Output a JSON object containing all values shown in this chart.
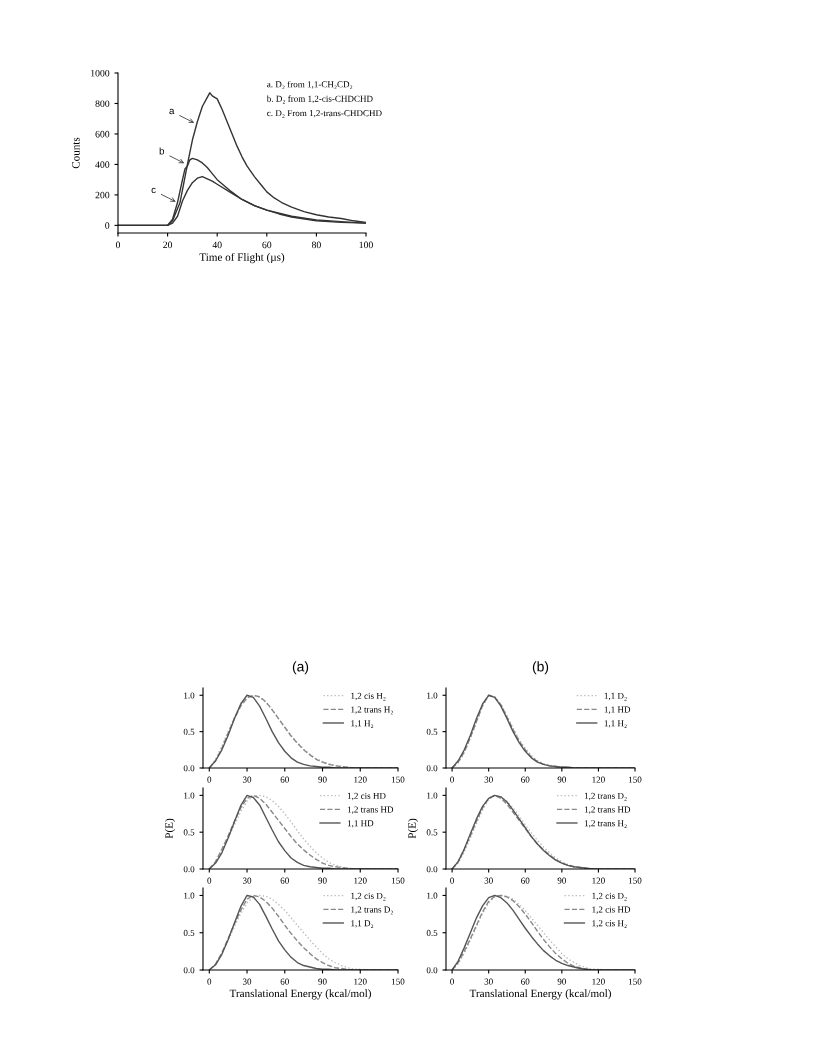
{
  "chart_data": [
    {
      "type": "line",
      "xlabel": "Time of Flight (µs)",
      "ylabel": "Counts",
      "xlim": [
        0,
        100
      ],
      "ylim": [
        -50,
        1000
      ],
      "xticks": [
        0,
        20,
        40,
        60,
        80,
        100
      ],
      "yticks": [
        0,
        200,
        400,
        600,
        800,
        1000
      ],
      "annotations": [
        "a. D₂ from 1,1-CH₂CD₂",
        "b. D₂ from 1,2-cis-CHDCHD",
        "c. D₂ From 1,2-trans-CHDCHD",
        {
          "text": "a",
          "x": 31.7,
          "y": 665
        },
        {
          "text": "b",
          "x": 27.7,
          "y": 400
        },
        {
          "text": "c",
          "x": 24.3,
          "y": 147
        }
      ],
      "series": [
        {
          "color": "#333333",
          "line_style": "solid",
          "x": [
            0,
            10,
            20,
            22,
            25,
            28,
            30,
            32,
            34,
            36,
            37,
            38,
            40,
            42,
            44,
            46,
            48,
            50,
            52,
            55,
            58,
            60,
            63,
            66,
            70,
            75,
            80,
            85,
            90,
            95,
            100
          ],
          "values": [
            0,
            0,
            0,
            30,
            150,
            400,
            560,
            680,
            780,
            840,
            870,
            850,
            830,
            760,
            680,
            600,
            520,
            450,
            390,
            320,
            260,
            220,
            180,
            150,
            120,
            90,
            70,
            55,
            45,
            30,
            20
          ]
        },
        {
          "color": "#333333",
          "line_style": "solid",
          "x": [
            0,
            10,
            20,
            22,
            24,
            26,
            27,
            28,
            29,
            30,
            32,
            34,
            36,
            38,
            40,
            45,
            50,
            55,
            60,
            65,
            70,
            80,
            90,
            100
          ],
          "values": [
            0,
            0,
            0,
            40,
            150,
            300,
            370,
            390,
            430,
            440,
            430,
            410,
            380,
            340,
            300,
            230,
            170,
            130,
            100,
            75,
            55,
            30,
            20,
            15
          ]
        },
        {
          "color": "#333333",
          "line_style": "solid",
          "x": [
            0,
            10,
            20,
            22,
            24,
            26,
            28,
            30,
            32,
            34,
            36,
            38,
            40,
            45,
            50,
            55,
            60,
            70,
            80,
            90,
            100
          ],
          "values": [
            0,
            0,
            0,
            15,
            60,
            160,
            230,
            280,
            310,
            320,
            305,
            290,
            270,
            220,
            170,
            130,
            100,
            60,
            35,
            25,
            15
          ]
        }
      ]
    },
    {
      "type": "line",
      "title": "(a)",
      "legend": "top right",
      "x": [
        0,
        5,
        10,
        15,
        20,
        25,
        30,
        35,
        40,
        45,
        50,
        55,
        60,
        65,
        70,
        75,
        80,
        85,
        90,
        95,
        100,
        105,
        110,
        115,
        120,
        125,
        130,
        135,
        140,
        145,
        150
      ],
      "xlim": [
        -5,
        150
      ],
      "ylim": [
        0,
        1.1
      ],
      "xticks": [
        0,
        30,
        60,
        90,
        120,
        150
      ],
      "yticks": [
        {
          "value": 0,
          "label": "0.0"
        },
        {
          "value": 0.5,
          "label": "0.5"
        },
        {
          "value": 1,
          "label": "1.0"
        }
      ],
      "series": [
        {
          "name": "1,2 cis H₂",
          "color": "#bbbbbb",
          "line_style": "dotted",
          "values": [
            0,
            0.12,
            0.3,
            0.5,
            0.7,
            0.86,
            0.97,
            1.0,
            0.97,
            0.9,
            0.8,
            0.68,
            0.56,
            0.45,
            0.35,
            0.26,
            0.19,
            0.13,
            0.09,
            0.06,
            0.04,
            0.02,
            0.01,
            0,
            0,
            0,
            0,
            0,
            0,
            0,
            0
          ]
        },
        {
          "name": "1,2 trans H₂",
          "color": "#888888",
          "line_style": "dashed",
          "values": [
            0,
            0.1,
            0.27,
            0.48,
            0.68,
            0.85,
            0.96,
            1.0,
            0.98,
            0.91,
            0.8,
            0.68,
            0.56,
            0.44,
            0.34,
            0.25,
            0.18,
            0.12,
            0.08,
            0.05,
            0.03,
            0.02,
            0.01,
            0,
            0,
            0,
            0,
            0,
            0,
            0,
            0
          ]
        },
        {
          "name": "1,1 H₂",
          "color": "#555555",
          "line_style": "solid",
          "values": [
            0,
            0.1,
            0.25,
            0.45,
            0.68,
            0.88,
            1.0,
            0.97,
            0.85,
            0.68,
            0.5,
            0.35,
            0.23,
            0.14,
            0.08,
            0.05,
            0.03,
            0.02,
            0.01,
            0.01,
            0,
            0,
            0,
            0,
            0,
            0,
            0,
            0,
            0,
            0,
            0
          ]
        }
      ]
    },
    {
      "type": "line",
      "title": "(b)",
      "legend": "top right",
      "x": [
        0,
        5,
        10,
        15,
        20,
        25,
        30,
        35,
        40,
        45,
        50,
        55,
        60,
        65,
        70,
        75,
        80,
        85,
        90,
        95,
        100,
        105,
        110,
        115,
        120,
        125,
        130,
        135,
        140,
        145,
        150
      ],
      "xlim": [
        -5,
        150
      ],
      "ylim": [
        0,
        1.1
      ],
      "xticks": [
        0,
        30,
        60,
        90,
        120,
        150
      ],
      "yticks": [
        {
          "value": 0,
          "label": "0.0"
        },
        {
          "value": 0.5,
          "label": "0.5"
        },
        {
          "value": 1,
          "label": "1.0"
        }
      ],
      "series": [
        {
          "name": "1,1 D₂",
          "color": "#bbbbbb",
          "line_style": "dotted",
          "values": [
            0,
            0.07,
            0.21,
            0.41,
            0.63,
            0.85,
            1.0,
            0.98,
            0.88,
            0.72,
            0.55,
            0.39,
            0.27,
            0.17,
            0.1,
            0.06,
            0.04,
            0.02,
            0.01,
            0.01,
            0,
            0,
            0,
            0,
            0,
            0,
            0,
            0,
            0,
            0,
            0
          ]
        },
        {
          "name": "1,1 HD",
          "color": "#888888",
          "line_style": "dashed",
          "values": [
            0,
            0.08,
            0.22,
            0.42,
            0.64,
            0.86,
            1.0,
            0.97,
            0.87,
            0.7,
            0.53,
            0.37,
            0.25,
            0.15,
            0.09,
            0.05,
            0.03,
            0.02,
            0.01,
            0.01,
            0,
            0,
            0,
            0,
            0,
            0,
            0,
            0,
            0,
            0,
            0
          ]
        },
        {
          "name": "1,1 H₂",
          "color": "#555555",
          "line_style": "solid",
          "values": [
            0,
            0.1,
            0.25,
            0.45,
            0.68,
            0.88,
            1.0,
            0.97,
            0.85,
            0.68,
            0.5,
            0.35,
            0.23,
            0.14,
            0.08,
            0.05,
            0.03,
            0.02,
            0.01,
            0.01,
            0,
            0,
            0,
            0,
            0,
            0,
            0,
            0,
            0,
            0,
            0
          ]
        }
      ]
    },
    {
      "type": "line",
      "ylabel": "P(E)",
      "legend": "top right",
      "x": [
        0,
        5,
        10,
        15,
        20,
        25,
        30,
        35,
        40,
        45,
        50,
        55,
        60,
        65,
        70,
        75,
        80,
        85,
        90,
        95,
        100,
        105,
        110,
        115,
        120,
        125,
        130,
        135,
        140,
        145,
        150
      ],
      "xlim": [
        -5,
        150
      ],
      "ylim": [
        0,
        1.1
      ],
      "xticks": [
        0,
        30,
        60,
        90,
        120,
        150
      ],
      "yticks": [
        {
          "value": 0,
          "label": "0.0"
        },
        {
          "value": 0.5,
          "label": "0.5"
        },
        {
          "value": 1,
          "label": "1.0"
        }
      ],
      "series": [
        {
          "name": "1,2 cis HD",
          "color": "#bbbbbb",
          "line_style": "dotted",
          "values": [
            0,
            0.1,
            0.25,
            0.42,
            0.6,
            0.78,
            0.92,
            0.99,
            1.0,
            0.98,
            0.93,
            0.85,
            0.75,
            0.64,
            0.52,
            0.41,
            0.31,
            0.22,
            0.15,
            0.09,
            0.05,
            0.03,
            0.01,
            0,
            0,
            0,
            0,
            0,
            0,
            0,
            0
          ]
        },
        {
          "name": "1,2 trans HD",
          "color": "#888888",
          "line_style": "dashed",
          "values": [
            0,
            0.1,
            0.27,
            0.45,
            0.65,
            0.83,
            0.96,
            1.0,
            0.96,
            0.88,
            0.77,
            0.66,
            0.55,
            0.44,
            0.34,
            0.26,
            0.19,
            0.13,
            0.08,
            0.05,
            0.03,
            0.02,
            0.01,
            0,
            0,
            0,
            0,
            0,
            0,
            0,
            0
          ]
        },
        {
          "name": "1,1 HD",
          "color": "#555555",
          "line_style": "solid",
          "values": [
            0,
            0.08,
            0.22,
            0.42,
            0.64,
            0.86,
            1.0,
            0.97,
            0.87,
            0.7,
            0.53,
            0.37,
            0.25,
            0.15,
            0.09,
            0.05,
            0.03,
            0.02,
            0.01,
            0.01,
            0,
            0,
            0,
            0,
            0,
            0,
            0,
            0,
            0,
            0,
            0
          ]
        }
      ]
    },
    {
      "type": "line",
      "ylabel": "P(E)",
      "legend": "top right",
      "x": [
        0,
        5,
        10,
        15,
        20,
        25,
        30,
        35,
        40,
        45,
        50,
        55,
        60,
        65,
        70,
        75,
        80,
        85,
        90,
        95,
        100,
        105,
        110,
        115,
        120,
        125,
        130,
        135,
        140,
        145,
        150
      ],
      "xlim": [
        -5,
        150
      ],
      "ylim": [
        0,
        1.1
      ],
      "xticks": [
        0,
        30,
        60,
        90,
        120,
        150
      ],
      "yticks": [
        {
          "value": 0,
          "label": "0.0"
        },
        {
          "value": 0.5,
          "label": "0.5"
        },
        {
          "value": 1,
          "label": "1.0"
        }
      ],
      "series": [
        {
          "name": "1,2 trans D₂",
          "color": "#bbbbbb",
          "line_style": "dotted",
          "values": [
            0,
            0.08,
            0.23,
            0.42,
            0.62,
            0.8,
            0.95,
            1.0,
            0.98,
            0.92,
            0.83,
            0.72,
            0.6,
            0.49,
            0.39,
            0.3,
            0.22,
            0.15,
            0.1,
            0.06,
            0.03,
            0.02,
            0.01,
            0,
            0,
            0,
            0,
            0,
            0,
            0,
            0
          ]
        },
        {
          "name": "1,2 trans HD",
          "color": "#888888",
          "line_style": "dashed",
          "values": [
            0,
            0.1,
            0.27,
            0.45,
            0.65,
            0.83,
            0.96,
            1.0,
            0.96,
            0.88,
            0.77,
            0.66,
            0.55,
            0.44,
            0.34,
            0.26,
            0.19,
            0.13,
            0.08,
            0.05,
            0.03,
            0.02,
            0.01,
            0,
            0,
            0,
            0,
            0,
            0,
            0,
            0
          ]
        },
        {
          "name": "1,2 trans H₂",
          "color": "#555555",
          "line_style": "solid",
          "values": [
            0,
            0.1,
            0.27,
            0.48,
            0.68,
            0.85,
            0.96,
            1.0,
            0.98,
            0.91,
            0.8,
            0.68,
            0.56,
            0.44,
            0.34,
            0.25,
            0.18,
            0.12,
            0.08,
            0.05,
            0.03,
            0.02,
            0.01,
            0,
            0,
            0,
            0,
            0,
            0,
            0,
            0
          ]
        }
      ]
    },
    {
      "type": "line",
      "xlabel": "Translational Energy (kcal/mol)",
      "legend": "top right",
      "x": [
        0,
        5,
        10,
        15,
        20,
        25,
        30,
        35,
        40,
        45,
        50,
        55,
        60,
        65,
        70,
        75,
        80,
        85,
        90,
        95,
        100,
        105,
        110,
        115,
        120,
        125,
        130,
        135,
        140,
        145,
        150
      ],
      "xlim": [
        -5,
        150
      ],
      "ylim": [
        0,
        1.1
      ],
      "xticks": [
        0,
        30,
        60,
        90,
        120,
        150
      ],
      "yticks": [
        {
          "value": 0,
          "label": "0.0"
        },
        {
          "value": 0.5,
          "label": "0.5"
        },
        {
          "value": 1,
          "label": "1.0"
        }
      ],
      "series": [
        {
          "name": "1,2 cis D₂",
          "color": "#bbbbbb",
          "line_style": "dotted",
          "values": [
            0,
            0.08,
            0.22,
            0.4,
            0.58,
            0.76,
            0.9,
            0.98,
            1.0,
            0.99,
            0.95,
            0.88,
            0.8,
            0.7,
            0.6,
            0.5,
            0.4,
            0.31,
            0.22,
            0.15,
            0.1,
            0.06,
            0.03,
            0.01,
            0.01,
            0,
            0,
            0,
            0,
            0,
            0
          ]
        },
        {
          "name": "1,2 trans D₂",
          "color": "#888888",
          "line_style": "dashed",
          "values": [
            0,
            0.08,
            0.23,
            0.42,
            0.62,
            0.8,
            0.95,
            1.0,
            0.98,
            0.92,
            0.83,
            0.72,
            0.6,
            0.49,
            0.39,
            0.3,
            0.22,
            0.15,
            0.1,
            0.06,
            0.03,
            0.02,
            0.01,
            0,
            0,
            0,
            0,
            0,
            0,
            0,
            0
          ]
        },
        {
          "name": "1,1 D₂",
          "color": "#555555",
          "line_style": "solid",
          "values": [
            0,
            0.07,
            0.21,
            0.41,
            0.63,
            0.85,
            1.0,
            0.98,
            0.88,
            0.72,
            0.55,
            0.39,
            0.27,
            0.17,
            0.1,
            0.06,
            0.04,
            0.02,
            0.01,
            0.01,
            0,
            0,
            0,
            0,
            0,
            0,
            0,
            0,
            0,
            0,
            0
          ]
        }
      ]
    },
    {
      "type": "line",
      "xlabel": "Translational Energy (kcal/mol)",
      "legend": "top right",
      "x": [
        0,
        5,
        10,
        15,
        20,
        25,
        30,
        35,
        40,
        45,
        50,
        55,
        60,
        65,
        70,
        75,
        80,
        85,
        90,
        95,
        100,
        105,
        110,
        115,
        120,
        125,
        130,
        135,
        140,
        145,
        150
      ],
      "xlim": [
        -5,
        150
      ],
      "ylim": [
        0,
        1.1
      ],
      "xticks": [
        0,
        30,
        60,
        90,
        120,
        150
      ],
      "yticks": [
        {
          "value": 0,
          "label": "0.0"
        },
        {
          "value": 0.5,
          "label": "0.5"
        },
        {
          "value": 1,
          "label": "1.0"
        }
      ],
      "series": [
        {
          "name": "1,2 cis D₂",
          "color": "#bbbbbb",
          "line_style": "dotted",
          "values": [
            0,
            0.08,
            0.22,
            0.4,
            0.58,
            0.76,
            0.9,
            0.98,
            1.0,
            0.99,
            0.95,
            0.88,
            0.8,
            0.7,
            0.6,
            0.5,
            0.4,
            0.31,
            0.22,
            0.15,
            0.1,
            0.06,
            0.03,
            0.01,
            0.01,
            0,
            0,
            0,
            0,
            0,
            0
          ]
        },
        {
          "name": "1,2 cis HD",
          "color": "#888888",
          "line_style": "dashed",
          "values": [
            0,
            0.1,
            0.25,
            0.42,
            0.6,
            0.78,
            0.92,
            0.99,
            1.0,
            0.98,
            0.93,
            0.85,
            0.75,
            0.64,
            0.52,
            0.41,
            0.31,
            0.22,
            0.15,
            0.09,
            0.05,
            0.03,
            0.01,
            0,
            0,
            0,
            0,
            0,
            0,
            0,
            0
          ]
        },
        {
          "name": "1,2 cis H₂",
          "color": "#555555",
          "line_style": "solid",
          "values": [
            0,
            0.12,
            0.3,
            0.5,
            0.7,
            0.86,
            0.97,
            1.0,
            0.97,
            0.9,
            0.8,
            0.68,
            0.56,
            0.45,
            0.35,
            0.26,
            0.19,
            0.13,
            0.09,
            0.06,
            0.04,
            0.02,
            0.01,
            0,
            0,
            0,
            0,
            0,
            0,
            0,
            0
          ]
        }
      ]
    }
  ]
}
